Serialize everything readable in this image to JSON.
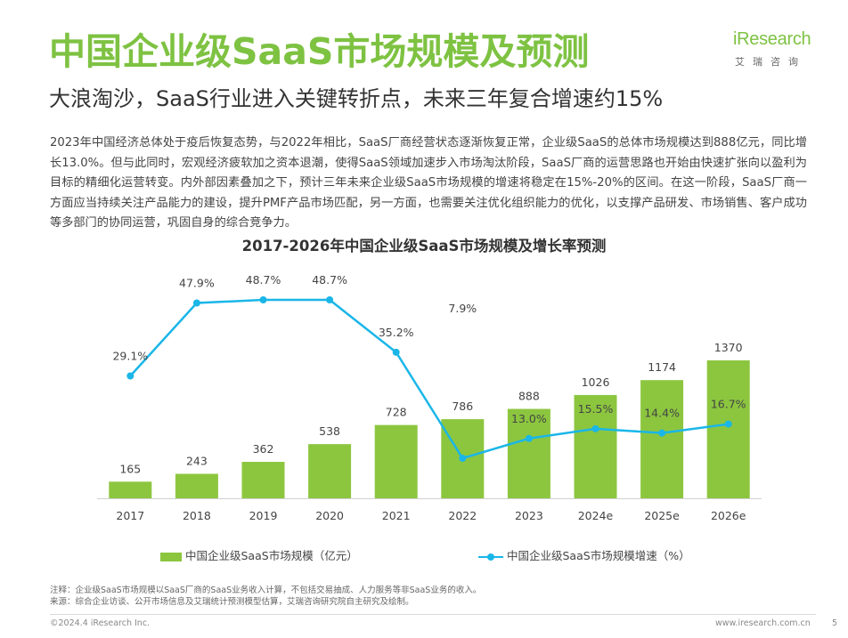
{
  "header": {
    "title": "中国企业级SaaS市场规模及预测",
    "subtitle": "大浪淘沙，SaaS行业进入关键转折点，未来三年复合增速约15%"
  },
  "logo": {
    "main": "iResearch",
    "sub": "艾瑞咨询"
  },
  "body_text": "2023年中国经济总体处于疫后恢复态势，与2022年相比，SaaS厂商经营状态逐渐恢复正常，企业级SaaS的总体市场规模达到888亿元，同比增长13.0%。但与此同时，宏观经济疲软加之资本退潮，使得SaaS领域加速步入市场淘汰阶段，SaaS厂商的运营思路也开始由快速扩张向以盈利为目标的精细化运营转变。内外部因素叠加之下，预计三年未来企业级SaaS市场规模的增速将稳定在15%-20%的区间。在这一阶段，SaaS厂商一方面应当持续关注产品能力的建设，提升PMF产品市场匹配，另一方面，也需要关注优化组织能力的优化，以支撑产品研发、市场销售、客户成功等多部门的协同运营，巩固自身的综合竞争力。",
  "chart_data": {
    "type": "bar",
    "title": "2017-2026年中国企业级SaaS市场规模及增长率预测",
    "categories": [
      "2017",
      "2018",
      "2019",
      "2020",
      "2021",
      "2022",
      "2023",
      "2024e",
      "2025e",
      "2026e"
    ],
    "series": [
      {
        "name": "中国企业级SaaS市场规模（亿元）",
        "type": "bar",
        "values": [
          165,
          243,
          362,
          538,
          728,
          786,
          888,
          1026,
          1174,
          1370
        ],
        "labels": [
          "165",
          "243",
          "362",
          "538",
          "728",
          "786",
          "888",
          "1026",
          "1174",
          "1370"
        ],
        "color": "#8cc63f"
      },
      {
        "name": "中国企业级SaaS市场规模增速（%）",
        "type": "line",
        "values": [
          29.1,
          47.9,
          48.7,
          48.7,
          35.2,
          7.9,
          13.0,
          15.5,
          14.4,
          16.7
        ],
        "labels": [
          "29.1%",
          "47.9%",
          "48.7%",
          "48.7%",
          "35.2%",
          "7.9%",
          "13.0%",
          "15.5%",
          "14.4%",
          "16.7%"
        ],
        "color": "#1ab6e8"
      }
    ],
    "legend_position": "bottom",
    "grid": false
  },
  "notes": {
    "note": "注释：企业级SaaS市场规模以SaaS厂商的SaaS业务收入计算，不包括交易抽成、人力服务等非SaaS业务的收入。",
    "source": "来源：综合企业访谈、公开市场信息及艾瑞统计预测模型估算，艾瑞咨询研究院自主研究及绘制。"
  },
  "footer": {
    "copyright": "©2024.4 iResearch Inc.",
    "url": "www.iresearch.com.cn",
    "page": "5"
  }
}
